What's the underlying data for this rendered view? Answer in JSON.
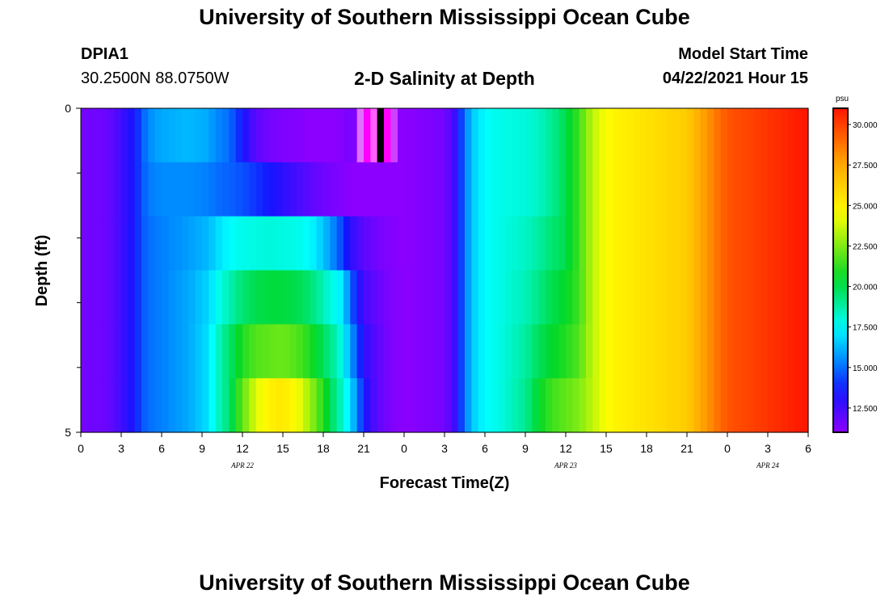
{
  "page": {
    "title_top": "University of Southern Mississippi Ocean Cube",
    "title_bottom": "University of Southern Mississippi Ocean Cube",
    "station": "DPIA1",
    "coords": "30.2500N  88.0750W",
    "subtitle": "2-D Salinity at Depth",
    "start_label": "Model Start Time",
    "start_time": "04/22/2021 Hour 15"
  },
  "chart_data": {
    "type": "heatmap",
    "xlabel": "Forecast Time(Z)",
    "ylabel": "Depth (ft)",
    "xlim": [
      0,
      54
    ],
    "ylim": [
      0,
      5
    ],
    "x_tick_values": [
      0,
      3,
      6,
      9,
      12,
      15,
      18,
      21,
      24,
      27,
      30,
      33,
      36,
      39,
      42,
      45,
      48,
      51,
      54
    ],
    "x_tick_labels": [
      "0",
      "3",
      "6",
      "9",
      "12",
      "15",
      "18",
      "21",
      "0",
      "3",
      "6",
      "9",
      "12",
      "15",
      "18",
      "21",
      "0",
      "3",
      "6"
    ],
    "date_labels": [
      {
        "x": 12,
        "text": "APR 22"
      },
      {
        "x": 36,
        "text": "APR 23"
      },
      {
        "x": 51,
        "text": "APR 24"
      }
    ],
    "y_tick_values": [
      0,
      5
    ],
    "y_tick_labels": [
      "0",
      "5"
    ],
    "y_minor_ticks": [
      1,
      2,
      3,
      4
    ],
    "colorbar": {
      "unit": "psu",
      "min": 11.0,
      "max": 31.0,
      "ticks": [
        12.5,
        15.0,
        17.5,
        20.0,
        22.5,
        25.0,
        27.5,
        30.0
      ],
      "tick_labels": [
        "12.500",
        "15.000",
        "17.500",
        "20.000",
        "22.500",
        "25.000",
        "27.500",
        "30.000"
      ]
    },
    "depths": [
      0,
      1,
      2,
      3,
      4,
      5
    ],
    "hours": [
      0,
      2,
      4,
      4.5,
      5,
      6,
      8,
      9.5,
      10,
      11,
      12,
      13,
      14,
      15,
      16,
      17,
      18,
      19,
      19.5,
      20,
      20.5,
      21,
      22,
      23,
      24,
      27,
      28,
      28.3,
      29,
      30,
      31,
      33,
      34,
      35,
      36,
      37,
      38,
      39,
      40,
      42,
      45,
      46,
      47,
      48,
      50,
      52,
      54
    ],
    "salinity": [
      [
        11.5,
        11.7,
        13.5,
        14.5,
        15.5,
        16.0,
        16.3,
        16.0,
        15.5,
        15.0,
        13.5,
        12.0,
        11.5,
        11.3,
        11.2,
        11.0,
        10.8,
        11.0,
        11.2,
        11.5,
        11.0,
        11.0,
        11.0,
        11.0,
        11.0,
        11.5,
        13.0,
        14.5,
        16.5,
        17.5,
        17.8,
        18.0,
        18.3,
        19.0,
        20.0,
        21.5,
        23.5,
        24.5,
        25.0,
        25.5,
        26.3,
        27.5,
        28.5,
        29.5,
        30.0,
        30.5,
        31.0
      ],
      [
        11.5,
        11.7,
        13.5,
        14.5,
        15.2,
        15.5,
        15.5,
        15.3,
        15.0,
        14.8,
        14.5,
        14.0,
        13.5,
        13.0,
        12.5,
        12.0,
        11.6,
        11.3,
        11.2,
        11.0,
        11.0,
        11.0,
        11.0,
        11.0,
        11.0,
        11.5,
        13.0,
        14.5,
        16.5,
        17.5,
        17.8,
        18.0,
        18.3,
        19.0,
        20.0,
        21.5,
        23.5,
        24.5,
        25.0,
        25.5,
        26.3,
        27.5,
        28.5,
        29.5,
        30.0,
        30.5,
        31.0
      ],
      [
        11.5,
        11.7,
        13.5,
        14.5,
        15.0,
        15.3,
        15.8,
        16.3,
        16.8,
        17.5,
        17.8,
        17.9,
        18.0,
        17.9,
        17.8,
        17.5,
        16.5,
        15.0,
        14.0,
        13.0,
        12.5,
        12.0,
        11.5,
        11.2,
        11.0,
        11.5,
        13.0,
        14.5,
        16.5,
        17.5,
        17.8,
        18.3,
        18.8,
        19.5,
        20.0,
        21.5,
        23.5,
        24.5,
        25.0,
        25.5,
        26.3,
        27.5,
        28.5,
        29.5,
        30.0,
        30.5,
        31.0
      ],
      [
        11.5,
        11.7,
        13.5,
        14.5,
        15.0,
        15.3,
        16.0,
        16.8,
        17.5,
        18.5,
        19.5,
        20.0,
        20.2,
        20.2,
        20.0,
        19.5,
        18.5,
        17.5,
        17.0,
        15.0,
        13.5,
        12.5,
        11.8,
        11.3,
        11.0,
        11.5,
        13.0,
        14.5,
        16.5,
        17.5,
        17.8,
        18.5,
        19.2,
        20.0,
        20.5,
        21.5,
        23.5,
        24.5,
        25.0,
        25.5,
        26.3,
        27.5,
        28.5,
        29.5,
        30.0,
        30.5,
        31.0
      ],
      [
        11.5,
        11.7,
        13.5,
        14.5,
        15.0,
        15.3,
        16.0,
        17.0,
        18.0,
        19.5,
        21.0,
        21.8,
        22.0,
        22.2,
        21.8,
        21.0,
        19.8,
        18.5,
        17.5,
        16.0,
        14.5,
        13.0,
        12.0,
        11.3,
        11.0,
        11.5,
        13.0,
        14.5,
        16.5,
        17.5,
        17.8,
        18.8,
        19.8,
        20.5,
        21.0,
        21.8,
        23.5,
        24.5,
        25.0,
        25.5,
        26.3,
        27.5,
        28.5,
        29.5,
        30.0,
        30.5,
        31.0
      ],
      [
        11.5,
        11.7,
        13.5,
        14.5,
        15.0,
        15.3,
        16.0,
        17.0,
        18.0,
        19.5,
        22.0,
        24.0,
        25.0,
        25.3,
        24.5,
        23.0,
        21.0,
        19.0,
        18.0,
        17.0,
        15.5,
        13.5,
        12.0,
        11.3,
        11.0,
        11.5,
        13.0,
        14.5,
        16.5,
        17.5,
        17.8,
        19.0,
        20.5,
        21.5,
        22.0,
        22.5,
        23.5,
        24.5,
        25.0,
        25.5,
        26.3,
        27.5,
        28.5,
        29.5,
        30.0,
        30.5,
        31.0
      ]
    ],
    "anomaly": {
      "depth_row": 0,
      "hours": [
        20.5,
        21.0,
        21.5,
        22.0,
        22.5,
        23.0
      ],
      "colors": [
        "#e070ff",
        "#ff00ff",
        "#ff60ff",
        "#000000",
        "#ff00ff",
        "#d040ff"
      ]
    }
  }
}
